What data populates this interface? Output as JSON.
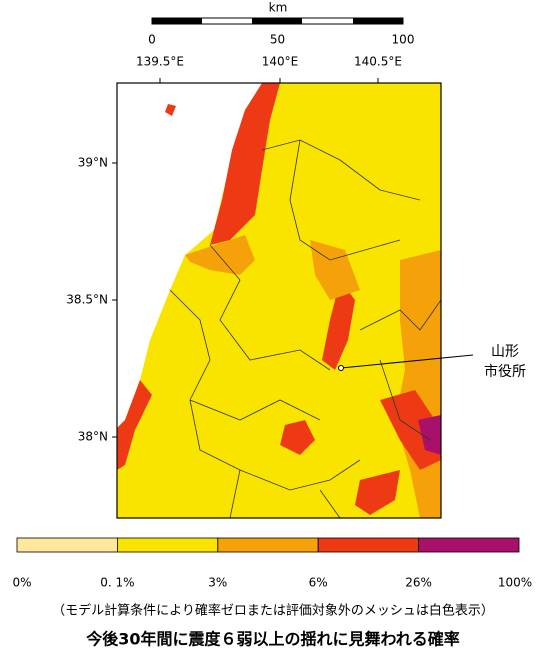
{
  "scale_bar": {
    "unit": "km",
    "ticks": [
      0,
      50,
      100
    ]
  },
  "lon_labels": [
    "139.5°E",
    "140°E",
    "140.5°E"
  ],
  "lat_labels": [
    "39°N",
    "38.5°N",
    "38°N"
  ],
  "marker": {
    "lines": [
      "山形",
      "市役所"
    ]
  },
  "legend": {
    "colors": [
      "#fde89c",
      "#f9e400",
      "#f5a10a",
      "#ee3a14",
      "#a8106a"
    ],
    "labels": [
      "0%",
      "0. 1%",
      "3%",
      "6%",
      "26%",
      "100%"
    ]
  },
  "note": "（モデル計算条件により確率ゼロまたは評価対象外のメッシュは白色表示）",
  "title": "今後30年間に震度６弱以上の揺れに見舞われる確率"
}
